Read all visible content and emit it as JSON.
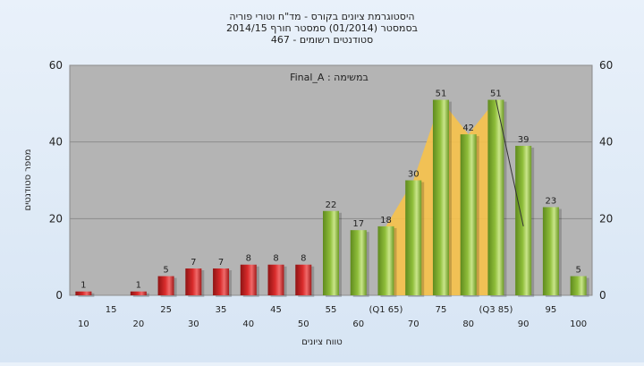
{
  "titles": [
    "היסטוגרמת ציונים בקורס - מד\"ח וטורי פוריה",
    "בסמסטר  (01/2014)  סמסטר חורף 2014/15",
    "סטודנטים רשומים - 467"
  ],
  "annotation": "במשימה : Final_A",
  "colors": {
    "background": "#dfeaf6",
    "plot": "#b4b4b4",
    "red_bar": "#d92b2b",
    "green_bar": "#8fbe3a",
    "area": "#f7c24a",
    "line": "#333333"
  },
  "chart_data": {
    "type": "bar",
    "xlabel": "טווח ציונים",
    "ylabel": "מספר סטודנטים",
    "ylim": [
      0,
      60
    ],
    "yticks": [
      0,
      20,
      40,
      60
    ],
    "grid": true,
    "categories": [
      "10",
      "15",
      "20",
      "25",
      "30",
      "35",
      "40",
      "45",
      "50",
      "55",
      "60",
      "65",
      "70",
      "75",
      "80",
      "85",
      "90",
      "95",
      "100"
    ],
    "category_labels": [
      "10",
      "15",
      "20",
      "25",
      "30",
      "35",
      "40",
      "45",
      "50",
      "55",
      "60",
      "(Q1 65)",
      "70",
      "75",
      "80",
      "(Q3 85)",
      "90",
      "95",
      "100"
    ],
    "values": [
      1,
      0,
      1,
      5,
      7,
      7,
      8,
      8,
      8,
      22,
      17,
      18,
      30,
      51,
      42,
      51,
      39,
      23,
      5
    ],
    "value_labels": [
      "1",
      "",
      "1",
      "5",
      "7",
      "7",
      "8",
      "8",
      "8",
      "22",
      "17",
      "18",
      "30",
      "51",
      "42",
      "51",
      "39",
      "23",
      "5"
    ],
    "bar_colors": [
      "red",
      "red",
      "red",
      "red",
      "red",
      "red",
      "red",
      "red",
      "red",
      "green",
      "green",
      "green",
      "green",
      "green",
      "green",
      "green",
      "green",
      "green",
      "green"
    ],
    "iqr_area": {
      "categories": [
        "65",
        "70",
        "75",
        "80",
        "85"
      ],
      "values": [
        18,
        30,
        51,
        42,
        51
      ]
    },
    "marker_line": {
      "x": [
        "85",
        "90"
      ],
      "y": [
        51,
        18
      ]
    }
  }
}
